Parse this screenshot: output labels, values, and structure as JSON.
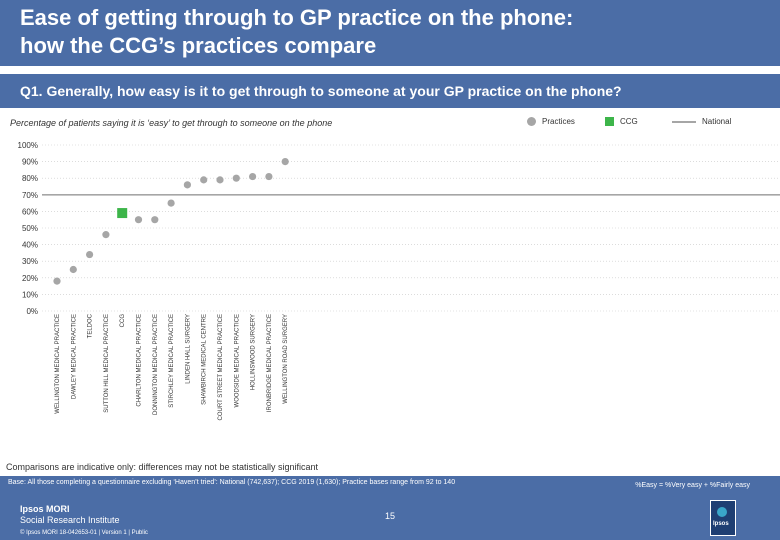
{
  "header": {
    "title_line1": "Ease of getting through to GP practice on the phone:",
    "title_line2": "how the CCG’s practices compare"
  },
  "question": "Q1. Generally, how easy is it to get through to someone at your GP practice on the phone?",
  "subtitle": "Percentage of patients saying it is ‘easy’ to get through to someone on the phone",
  "legend": {
    "practices": "Practices",
    "ccg": "CCG",
    "national": "National"
  },
  "colors": {
    "header": "#4b6da6",
    "practice_point": "#a6a6a6",
    "ccg_point": "#3db54a",
    "national_line": "#a6a6a6",
    "gridline": "#c8c8c8"
  },
  "chart_data": {
    "type": "scatter",
    "categories": [
      "WELLINGTON MEDICAL PRACTICE",
      "DAWLEY MEDICAL PRACTICE",
      "TELDOC",
      "SUTTON HILL MEDICAL PRACTICE",
      "CCG",
      "CHARLTON MEDICAL PRACTICE",
      "DONNINGTON MEDICAL PRACTICE",
      "STIRCHLEY MEDICAL PRACTICE",
      "LINDEN HALL SURGERY",
      "SHAWBIRCH MEDICAL CENTRE",
      "COURT STREET MEDICAL PRACTICE",
      "WOODSIDE MEDICAL PRACTICE",
      "HOLLINSWOOD SURGERY",
      "IRONBRIDGE MEDICAL PRACTICE",
      "WELLINGTON ROAD SURGERY"
    ],
    "values": [
      18,
      25,
      34,
      46,
      59,
      55,
      55,
      65,
      76,
      79,
      79,
      80,
      81,
      81,
      90
    ],
    "is_ccg": [
      false,
      false,
      false,
      false,
      true,
      false,
      false,
      false,
      false,
      false,
      false,
      false,
      false,
      false,
      false
    ],
    "national_value": 70,
    "y_ticks": [
      "0%",
      "10%",
      "20%",
      "30%",
      "40%",
      "50%",
      "60%",
      "70%",
      "80%",
      "90%",
      "100%"
    ],
    "ylim": [
      0,
      100
    ],
    "grid": true
  },
  "footer": {
    "note": "Comparisons are indicative only: differences may not be statistically significant",
    "base": "Base: All those completing a questionnaire excluding ‘Haven’t tried’: National (742,637); CCG 2019 (1,630); Practice bases range from 92 to 140",
    "formula": "%Easy = %Very easy + %Fairly easy",
    "brand_line1": "Ipsos MORI",
    "brand_line2": "Social Research Institute",
    "page_number": "15",
    "copyright": "© Ipsos MORI     18-042653-01 | Version 1 | Public",
    "logo_text": "Ipsos"
  }
}
